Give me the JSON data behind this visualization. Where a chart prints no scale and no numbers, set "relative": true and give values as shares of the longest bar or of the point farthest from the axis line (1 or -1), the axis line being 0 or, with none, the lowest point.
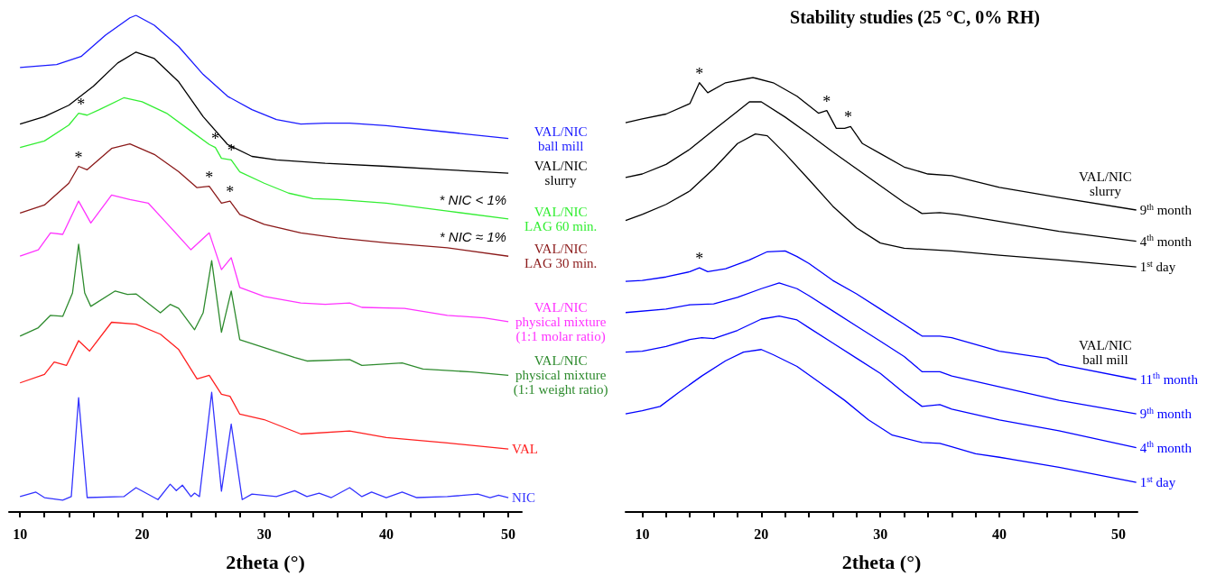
{
  "chart_data": [
    {
      "type": "line",
      "relative": true,
      "marker": "none",
      "xlabel": "2theta (°)",
      "xlim": [
        9.1,
        51.1
      ],
      "xticks": [
        10,
        {
          "value": 12,
          "label": null
        },
        {
          "value": 14,
          "label": null
        },
        {
          "value": 16,
          "label": null
        },
        {
          "value": 18,
          "label": null
        },
        20,
        {
          "value": 22,
          "label": null
        },
        {
          "value": 24,
          "label": null
        },
        {
          "value": 26,
          "label": null
        },
        {
          "value": 28,
          "label": null
        },
        30,
        {
          "value": 32,
          "label": null
        },
        {
          "value": 34,
          "label": null
        },
        {
          "value": 36,
          "label": null
        },
        {
          "value": 38,
          "label": null
        },
        40,
        {
          "value": 42,
          "label": null
        },
        {
          "value": 44,
          "label": null
        },
        {
          "value": 46,
          "label": null
        },
        {
          "value": 48,
          "label": null
        },
        50
      ],
      "annotations": [
        {
          "text": "*",
          "x": 15,
          "y": 0.803
        },
        {
          "text": "*",
          "x": 26,
          "y": 0.734
        },
        {
          "text": "*",
          "x": 27.3,
          "y": 0.709
        },
        {
          "text": "*",
          "x": 14.8,
          "y": 0.696
        },
        {
          "text": "*",
          "x": 25.5,
          "y": 0.656
        },
        {
          "text": "*",
          "x": 27.2,
          "y": 0.626
        },
        {
          "text": "* NIC < 1%",
          "x": 47.1,
          "y": 0.6
        },
        {
          "text": "* NIC ≈ 1%",
          "x": 47.1,
          "y": 0.525
        }
      ],
      "series": [
        {
          "name": "VAL/NIC\nball mill",
          "color": "#1a1aff",
          "x": [
            10,
            13,
            15,
            17,
            19,
            19.5,
            21,
            23,
            25,
            27,
            29,
            31,
            33,
            35,
            37,
            40,
            45,
            50
          ],
          "values": [
            0.895,
            0.901,
            0.917,
            0.96,
            0.995,
            1.0,
            0.98,
            0.937,
            0.881,
            0.837,
            0.81,
            0.79,
            0.781,
            0.783,
            0.783,
            0.778,
            0.765,
            0.752
          ]
        },
        {
          "name": "VAL/NIC\nslurry",
          "color": "#000000",
          "x": [
            10,
            12,
            14,
            16,
            18,
            19.5,
            21,
            23,
            25,
            27,
            29,
            31,
            35,
            40,
            45,
            50
          ],
          "values": [
            0.781,
            0.796,
            0.819,
            0.857,
            0.904,
            0.926,
            0.913,
            0.866,
            0.796,
            0.74,
            0.716,
            0.709,
            0.702,
            0.696,
            0.689,
            0.682
          ]
        },
        {
          "name": "VAL/NIC\nLAG 60 min.",
          "color": "#33ee33",
          "x": [
            10,
            12,
            14,
            14.8,
            15.5,
            16.5,
            18.5,
            20,
            22,
            24,
            25.5,
            26,
            26.5,
            27.3,
            28,
            30,
            32,
            34,
            36,
            40,
            45,
            50
          ],
          "values": [
            0.734,
            0.747,
            0.779,
            0.803,
            0.799,
            0.81,
            0.834,
            0.826,
            0.803,
            0.767,
            0.74,
            0.734,
            0.712,
            0.709,
            0.685,
            0.662,
            0.642,
            0.631,
            0.629,
            0.622,
            0.606,
            0.59
          ]
        },
        {
          "name": "VAL/NIC\nLAG 30 min.",
          "color": "#8b1a1a",
          "x": [
            10,
            12,
            14,
            14.8,
            15.5,
            17.5,
            19,
            21,
            23,
            24.5,
            25.5,
            26.5,
            27.2,
            28,
            30,
            33,
            36,
            40,
            45,
            50
          ],
          "values": [
            0.602,
            0.618,
            0.662,
            0.696,
            0.689,
            0.732,
            0.741,
            0.72,
            0.685,
            0.653,
            0.656,
            0.622,
            0.626,
            0.599,
            0.579,
            0.562,
            0.552,
            0.542,
            0.532,
            0.515
          ]
        },
        {
          "name": "VAL/NIC\nphysical mixture\n(1:1 molar ratio)",
          "color": "#ff33ff",
          "x": [
            10,
            11.5,
            12.5,
            13.5,
            14.8,
            15.8,
            17.5,
            19,
            20.5,
            22,
            24,
            25.5,
            26.5,
            27.3,
            28,
            30,
            33,
            35,
            37,
            38,
            41.5,
            45,
            48,
            50
          ],
          "values": [
            0.515,
            0.528,
            0.562,
            0.559,
            0.626,
            0.582,
            0.638,
            0.629,
            0.622,
            0.582,
            0.528,
            0.562,
            0.488,
            0.512,
            0.452,
            0.434,
            0.421,
            0.418,
            0.421,
            0.412,
            0.41,
            0.396,
            0.391,
            0.383
          ]
        },
        {
          "name": "VAL/NIC\nphysical mixture\n(1:1 weight ratio)",
          "color": "#2e8b2e",
          "x": [
            10,
            11.5,
            12.5,
            13.5,
            14.3,
            14.8,
            15.3,
            15.8,
            17.8,
            18.8,
            19.5,
            21.5,
            22.3,
            23,
            24.3,
            25,
            25.7,
            26.5,
            27.3,
            28,
            30,
            32.5,
            33.5,
            37,
            38,
            41.3,
            43,
            47,
            50
          ],
          "values": [
            0.354,
            0.371,
            0.396,
            0.394,
            0.441,
            0.539,
            0.441,
            0.414,
            0.445,
            0.438,
            0.439,
            0.401,
            0.418,
            0.41,
            0.367,
            0.401,
            0.506,
            0.362,
            0.445,
            0.347,
            0.331,
            0.311,
            0.304,
            0.307,
            0.295,
            0.3,
            0.288,
            0.282,
            0.275
          ]
        },
        {
          "name": "VAL",
          "color": "#ff2020",
          "x": [
            10,
            12,
            12.8,
            13.8,
            14.8,
            15.7,
            17.5,
            19.5,
            21.5,
            23,
            24.5,
            25.5,
            26.5,
            27.2,
            28,
            30,
            33,
            37,
            40,
            45,
            50
          ],
          "values": [
            0.26,
            0.277,
            0.302,
            0.295,
            0.345,
            0.324,
            0.382,
            0.378,
            0.358,
            0.327,
            0.268,
            0.275,
            0.237,
            0.233,
            0.197,
            0.186,
            0.157,
            0.163,
            0.15,
            0.139,
            0.127
          ]
        },
        {
          "name": "NIC",
          "color": "#3333ff",
          "x": [
            10,
            11.3,
            12,
            13.5,
            14.2,
            14.8,
            15.5,
            18.5,
            19.5,
            21.3,
            22.3,
            22.8,
            23.3,
            24,
            24.3,
            24.7,
            25.7,
            26.5,
            27.3,
            28.2,
            29,
            31,
            32.5,
            33.5,
            34.5,
            35.5,
            37,
            38,
            38.8,
            40,
            41.3,
            42.5,
            45,
            47.5,
            48.5,
            49.2,
            50
          ],
          "values": [
            0.031,
            0.04,
            0.029,
            0.024,
            0.031,
            0.23,
            0.029,
            0.031,
            0.049,
            0.025,
            0.056,
            0.043,
            0.054,
            0.031,
            0.038,
            0.031,
            0.241,
            0.042,
            0.177,
            0.025,
            0.036,
            0.031,
            0.043,
            0.031,
            0.038,
            0.029,
            0.049,
            0.031,
            0.04,
            0.029,
            0.04,
            0.029,
            0.031,
            0.036,
            0.029,
            0.034,
            0.029
          ]
        }
      ]
    },
    {
      "type": "line",
      "relative": true,
      "marker": "none",
      "title": "Stability studies (25 °C, 0% RH)",
      "xlabel": "2theta (°)",
      "xlim": [
        8.6,
        51.6
      ],
      "xticks": [
        10,
        {
          "value": 12,
          "label": null
        },
        {
          "value": 14,
          "label": null
        },
        {
          "value": 16,
          "label": null
        },
        {
          "value": 18,
          "label": null
        },
        20,
        {
          "value": 22,
          "label": null
        },
        {
          "value": 24,
          "label": null
        },
        {
          "value": 26,
          "label": null
        },
        {
          "value": 28,
          "label": null
        },
        30,
        {
          "value": 32,
          "label": null
        },
        {
          "value": 34,
          "label": null
        },
        {
          "value": 36,
          "label": null
        },
        {
          "value": 38,
          "label": null
        },
        40,
        {
          "value": 42,
          "label": null
        },
        {
          "value": 44,
          "label": null
        },
        {
          "value": 46,
          "label": null
        },
        {
          "value": 48,
          "label": null
        },
        50
      ],
      "annotations": [
        {
          "text": "*",
          "x": 14.8,
          "y": 0.988
        },
        {
          "text": "*",
          "x": 25.5,
          "y": 0.924
        },
        {
          "text": "*",
          "x": 27.3,
          "y": 0.887
        },
        {
          "text": "*",
          "x": 14.8,
          "y": 0.562
        },
        {
          "text": "VAL/NIC\nslurry",
          "x": 48.9,
          "y": 0.705
        },
        {
          "text": "VAL/NIC\nball mill",
          "x": 48.9,
          "y": 0.318
        }
      ],
      "series": [
        {
          "name": "9$^{th}$ month",
          "color": "#000000",
          "x": [
            8.6,
            10,
            12,
            14,
            14.8,
            15.5,
            17,
            19.3,
            21,
            23,
            24.8,
            25.5,
            26.3,
            27,
            27.5,
            28.5,
            30,
            32,
            34,
            36,
            40,
            45,
            51.5
          ],
          "values": [
            0.896,
            0.905,
            0.916,
            0.94,
            0.988,
            0.965,
            0.988,
            1.0,
            0.988,
            0.957,
            0.918,
            0.924,
            0.883,
            0.883,
            0.887,
            0.848,
            0.825,
            0.794,
            0.778,
            0.774,
            0.747,
            0.724,
            0.695
          ]
        },
        {
          "name": "4$^{th}$ month",
          "color": "#000000",
          "x": [
            8.6,
            10,
            12,
            14,
            16,
            18,
            19,
            20,
            22,
            24,
            26,
            28,
            30,
            32,
            33.5,
            35,
            36.5,
            40,
            45,
            51.5
          ],
          "values": [
            0.77,
            0.778,
            0.8,
            0.835,
            0.879,
            0.922,
            0.944,
            0.944,
            0.909,
            0.87,
            0.829,
            0.79,
            0.751,
            0.712,
            0.687,
            0.689,
            0.685,
            0.669,
            0.646,
            0.623
          ]
        },
        {
          "name": "1$^{st}$ day",
          "color": "#000000",
          "x": [
            8.6,
            10,
            12,
            14,
            16,
            18,
            19.5,
            20.5,
            22,
            24,
            26,
            28,
            30,
            32,
            36,
            40,
            45,
            51.5
          ],
          "values": [
            0.671,
            0.685,
            0.708,
            0.739,
            0.79,
            0.848,
            0.87,
            0.866,
            0.825,
            0.765,
            0.704,
            0.654,
            0.619,
            0.607,
            0.601,
            0.591,
            0.58,
            0.564
          ]
        },
        {
          "name": "11$^{th}$ month",
          "color": "#0000ff",
          "x": [
            8.6,
            10,
            12,
            14,
            14.8,
            15.5,
            17,
            19,
            20.5,
            22,
            23,
            24,
            26,
            28,
            30,
            32,
            33.5,
            35,
            36,
            40,
            44,
            45,
            51.5
          ],
          "values": [
            0.531,
            0.533,
            0.541,
            0.553,
            0.562,
            0.553,
            0.56,
            0.58,
            0.599,
            0.601,
            0.588,
            0.572,
            0.533,
            0.502,
            0.467,
            0.432,
            0.405,
            0.405,
            0.401,
            0.37,
            0.354,
            0.34,
            0.305
          ]
        },
        {
          "name": "9$^{th}$ month",
          "color": "#0000ff",
          "x": [
            8.6,
            12,
            14,
            16,
            18,
            20,
            21.5,
            23,
            24,
            26,
            28,
            30,
            32,
            33.5,
            35,
            36,
            40,
            45,
            51.5
          ],
          "values": [
            0.459,
            0.467,
            0.477,
            0.479,
            0.494,
            0.514,
            0.527,
            0.514,
            0.498,
            0.463,
            0.428,
            0.393,
            0.358,
            0.323,
            0.323,
            0.313,
            0.288,
            0.257,
            0.226
          ]
        },
        {
          "name": "4$^{th}$ month",
          "color": "#0000ff",
          "x": [
            8.6,
            10,
            12,
            14,
            15,
            16,
            18,
            20,
            21.5,
            23,
            24,
            26,
            28,
            30,
            32,
            33.5,
            35,
            36,
            40,
            45,
            51.5
          ],
          "values": [
            0.368,
            0.37,
            0.381,
            0.397,
            0.401,
            0.399,
            0.418,
            0.444,
            0.451,
            0.442,
            0.424,
            0.389,
            0.354,
            0.319,
            0.274,
            0.243,
            0.247,
            0.237,
            0.212,
            0.187,
            0.148
          ]
        },
        {
          "name": "1$^{st}$ day",
          "color": "#0000ff",
          "x": [
            8.6,
            10,
            11.5,
            13,
            15,
            17,
            18.5,
            20,
            21,
            23,
            25,
            27,
            29,
            31,
            33.5,
            35,
            36,
            38,
            40,
            45,
            51.5
          ],
          "values": [
            0.226,
            0.233,
            0.243,
            0.274,
            0.313,
            0.348,
            0.368,
            0.374,
            0.362,
            0.335,
            0.296,
            0.257,
            0.212,
            0.177,
            0.16,
            0.158,
            0.15,
            0.134,
            0.126,
            0.103,
            0.068
          ]
        }
      ]
    }
  ]
}
